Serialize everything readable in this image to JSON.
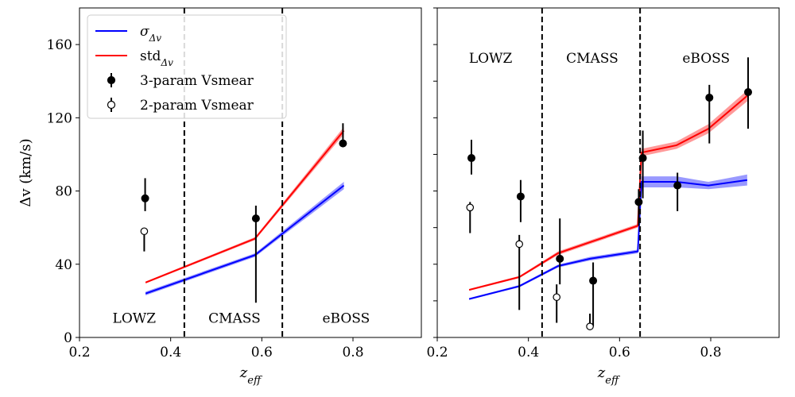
{
  "chart_data": [
    {
      "type": "line",
      "xlabel": "z_eff",
      "ylabel": "Δv (km/s)",
      "xlim": [
        0.2,
        0.95
      ],
      "ylim": [
        0,
        180
      ],
      "xticks": [
        "0.2",
        "0.4",
        "0.6",
        "0.8"
      ],
      "yticks": [
        "0",
        "40",
        "80",
        "120",
        "160"
      ],
      "legend": {
        "placement": "upper-left",
        "entries": [
          {
            "label": "σ",
            "sub": "Δv",
            "kind": "line",
            "color": "#0000ff"
          },
          {
            "label": "std",
            "sub": "Δv",
            "kind": "line",
            "color": "#ff0000"
          },
          {
            "label": "3-param Vsmear",
            "kind": "filled-marker",
            "color": "#000000"
          },
          {
            "label": "2-param Vsmear",
            "kind": "open-marker",
            "color": "#000000"
          }
        ]
      },
      "dividers_x": [
        0.43,
        0.645
      ],
      "regions": [
        {
          "label": "LOWZ",
          "x": 0.32,
          "y": 8
        },
        {
          "label": "CMASS",
          "x": 0.54,
          "y": 8
        },
        {
          "label": "eBOSS",
          "x": 0.785,
          "y": 8
        }
      ],
      "series": [
        {
          "name": "σΔv",
          "kind": "line",
          "color": "#0000ff",
          "x": [
            0.345,
            0.585,
            0.78
          ],
          "y": [
            24,
            45,
            83
          ],
          "band": [
            1,
            1,
            2
          ]
        },
        {
          "name": "stdΔv",
          "kind": "line",
          "color": "#ff0000",
          "x": [
            0.345,
            0.585,
            0.78
          ],
          "y": [
            30,
            54,
            113
          ],
          "band": [
            0.5,
            0.8,
            2
          ]
        },
        {
          "name": "3-param Vsmear",
          "kind": "errorbar",
          "marker": "filled",
          "x": [
            0.344,
            0.587,
            0.778
          ],
          "y": [
            76,
            65,
            106
          ],
          "yerr": [
            [
              7,
              11
            ],
            [
              46,
              7
            ],
            [
              1,
              11
            ]
          ]
        },
        {
          "name": "2-param Vsmear",
          "kind": "errorbar",
          "marker": "open",
          "x": [
            0.342
          ],
          "y": [
            58
          ],
          "yerr": [
            [
              11,
              0
            ]
          ]
        }
      ]
    },
    {
      "type": "line",
      "xlabel": "z_eff",
      "ylabel": "",
      "xlim": [
        0.2,
        0.95
      ],
      "ylim": [
        0,
        180
      ],
      "xticks": [
        "0.2",
        "0.4",
        "0.6",
        "0.8"
      ],
      "yticks": [],
      "dividers_x": [
        0.43,
        0.645
      ],
      "regions": [
        {
          "label": "LOWZ",
          "x": 0.317,
          "y": 150
        },
        {
          "label": "CMASS",
          "x": 0.54,
          "y": 150
        },
        {
          "label": "eBOSS",
          "x": 0.79,
          "y": 150
        }
      ],
      "series": [
        {
          "name": "σΔv",
          "kind": "line",
          "color": "#0000ff",
          "x": [
            0.27,
            0.38,
            0.465,
            0.535,
            0.64,
            0.648,
            0.725,
            0.795,
            0.88
          ],
          "y": [
            21,
            28,
            39,
            43,
            47,
            85,
            85,
            83,
            86
          ],
          "band": [
            0.5,
            0.6,
            0.8,
            1,
            1,
            3,
            3,
            2,
            3
          ]
        },
        {
          "name": "stdΔv",
          "kind": "line",
          "color": "#ff0000",
          "x": [
            0.27,
            0.38,
            0.465,
            0.535,
            0.64,
            0.648,
            0.725,
            0.795,
            0.88
          ],
          "y": [
            26,
            33,
            46,
            52,
            61,
            101,
            105,
            114,
            132
          ],
          "band": [
            0.5,
            0.6,
            1,
            1,
            1,
            2,
            2,
            2.5,
            3
          ]
        },
        {
          "name": "3-param Vsmear",
          "kind": "errorbar",
          "marker": "filled",
          "x": [
            0.275,
            0.383,
            0.469,
            0.542,
            0.642,
            0.651,
            0.727,
            0.797,
            0.882
          ],
          "y": [
            98,
            77,
            43,
            31,
            74,
            98,
            83,
            131,
            134
          ],
          "yerr": [
            [
              9,
              10
            ],
            [
              14,
              9
            ],
            [
              14,
              22
            ],
            [
              25,
              10
            ],
            [
              13,
              7
            ],
            [
              22,
              15
            ],
            [
              14,
              7
            ],
            [
              25,
              7
            ],
            [
              20,
              19
            ]
          ]
        },
        {
          "name": "2-param Vsmear",
          "kind": "errorbar",
          "marker": "open",
          "x": [
            0.272,
            0.38,
            0.462,
            0.535
          ],
          "y": [
            71,
            51,
            22,
            6
          ],
          "yerr": [
            [
              14,
              3
            ],
            [
              36,
              5
            ],
            [
              14,
              7
            ],
            [
              0,
              7
            ]
          ]
        }
      ]
    }
  ]
}
